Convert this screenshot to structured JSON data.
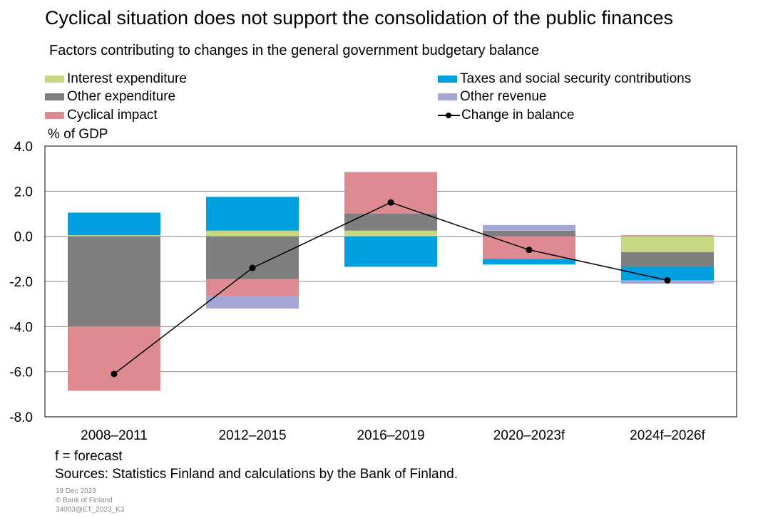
{
  "title": "Cyclical situation does not support the consolidation of the public finances",
  "subtitle": "Factors contributing to changes in the general government budgetary balance",
  "y_unit": "% of GDP",
  "colors": {
    "interest": "#c6d982",
    "other_exp": "#7f7f7f",
    "cyclical": "#de8a92",
    "taxes": "#00a0e0",
    "other_rev": "#a6a6d4",
    "line": "#000000"
  },
  "legend": {
    "interest": "Interest expenditure",
    "other_exp": "Other expenditure",
    "cyclical": "Cyclical impact",
    "taxes": "Taxes and social security contributions",
    "other_rev": "Other revenue",
    "balance": "Change in balance"
  },
  "chart_data": {
    "type": "bar",
    "stacked": true,
    "categories": [
      "2008–2011",
      "2012–2015",
      "2016–2019",
      "2020–2023f",
      "2024f–2026f"
    ],
    "ylim": [
      -8.0,
      4.0
    ],
    "yticks": [
      "4.0",
      "2.0",
      "0.0",
      "-2.0",
      "-4.0",
      "-6.0",
      "-8.0"
    ],
    "ytick_values": [
      4,
      2,
      0,
      -2,
      -4,
      -6,
      -8
    ],
    "grid": true,
    "legend_position": "top",
    "series": [
      {
        "name": "Interest expenditure",
        "key": "interest",
        "values": [
          0.05,
          0.25,
          0.25,
          0.0,
          -0.7
        ]
      },
      {
        "name": "Other expenditure",
        "key": "other_exp",
        "values": [
          -4.0,
          -1.9,
          0.75,
          0.25,
          -0.65
        ]
      },
      {
        "name": "Cyclical impact",
        "key": "cyclical",
        "values": [
          -2.85,
          -0.75,
          1.85,
          -1.0,
          0.05
        ]
      },
      {
        "name": "Taxes and social security contributions",
        "key": "taxes",
        "values": [
          1.0,
          1.5,
          -1.35,
          -0.25,
          -0.6
        ]
      },
      {
        "name": "Other revenue",
        "key": "other_rev",
        "values": [
          0.0,
          -0.55,
          0.0,
          0.25,
          -0.15
        ]
      }
    ],
    "line": {
      "name": "Change in balance",
      "values": [
        -6.1,
        -1.4,
        1.5,
        -0.6,
        -1.95
      ]
    }
  },
  "footer": {
    "note": "f = forecast",
    "sources": "Sources: Statistics Finland and calculations by the Bank of Finland.",
    "date": "19 Dec 2023",
    "copyright": "© Bank of Finland",
    "id": "34003@ET_2023_K3"
  }
}
